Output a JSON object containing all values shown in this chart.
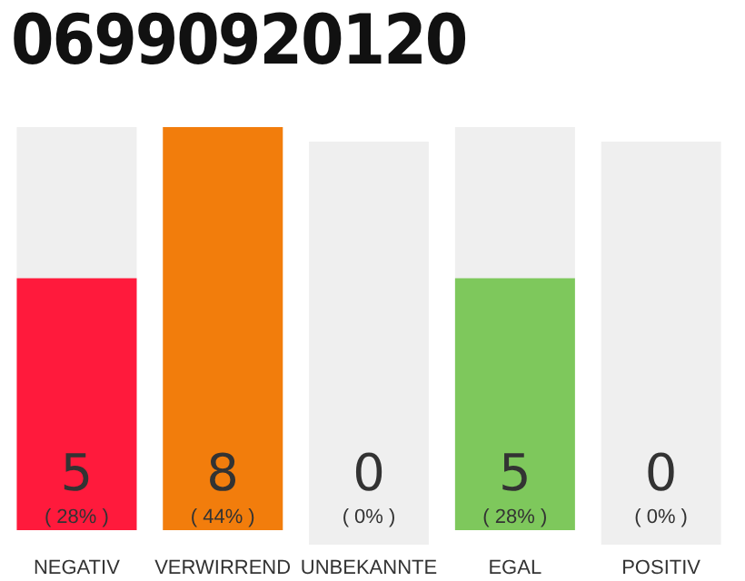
{
  "chart_data": {
    "type": "bar",
    "title": "06990920120",
    "categories": [
      "NEGATIV",
      "VERWIRREND",
      "UNBEKANNTE",
      "EGAL",
      "POSITIV"
    ],
    "values": [
      5,
      8,
      0,
      5,
      0
    ],
    "colors": [
      "#ff1a3c",
      "#f27d0c",
      "#9e9e9e",
      "#7ec85c",
      "#9e9e9e"
    ],
    "value_labels": [
      "5 ( 28% )",
      "8 ( 44% )",
      "0 ( 0% )",
      "5 ( 28% )",
      "0 ( 0% )"
    ],
    "grid": false,
    "legend": false
  }
}
